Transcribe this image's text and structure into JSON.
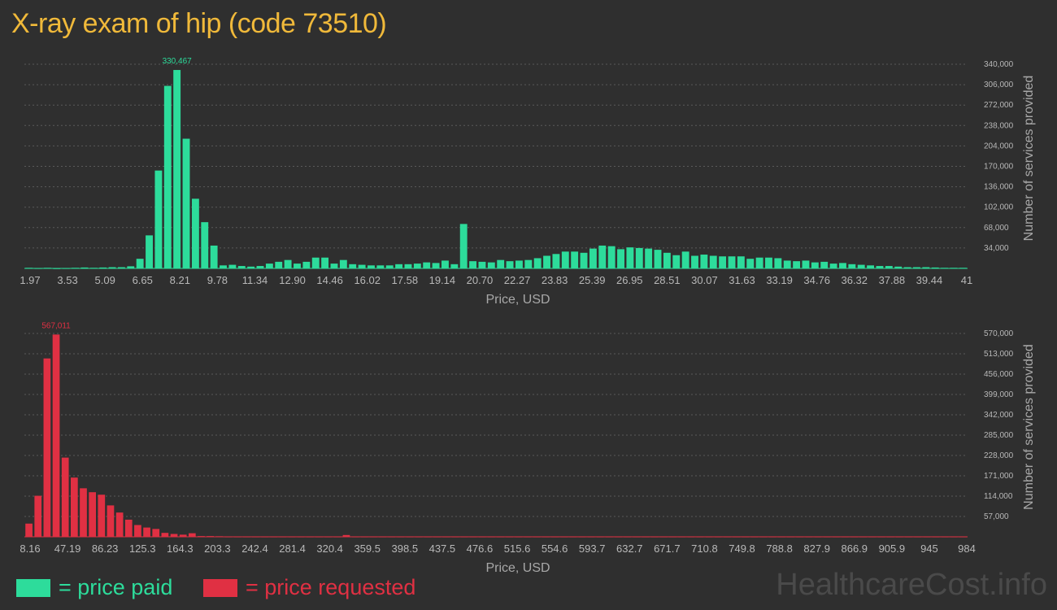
{
  "title": "X-ray exam of hip (code 73510)",
  "legend": {
    "paid_label": "= price paid",
    "requested_label": "= price requested",
    "paid_color": "#2ddc9b",
    "requested_color": "#e03043"
  },
  "watermark": "HealthcareCost.info",
  "chart_data": [
    {
      "type": "bar",
      "name": "price paid",
      "color": "#2ddc9b",
      "xlabel": "Price, USD",
      "ylabel": "Number of services provided",
      "ylim": [
        0,
        340000
      ],
      "yticks": [
        34000,
        68000,
        102000,
        136000,
        170000,
        204000,
        238000,
        272000,
        306000,
        340000
      ],
      "ytick_labels": [
        "34,000",
        "68,000",
        "102,000",
        "136,000",
        "170,000",
        "204,000",
        "238,000",
        "272,000",
        "306,000",
        "340,000"
      ],
      "xtick_labels": [
        "1.97",
        "3.53",
        "5.09",
        "6.65",
        "8.21",
        "9.78",
        "11.34",
        "12.90",
        "14.46",
        "16.02",
        "17.58",
        "19.14",
        "20.70",
        "22.27",
        "23.83",
        "25.39",
        "26.95",
        "28.51",
        "30.07",
        "31.63",
        "33.19",
        "34.76",
        "36.32",
        "37.88",
        "39.44",
        "41"
      ],
      "peak_label": "330,467",
      "peak_index": 16,
      "values": [
        1000,
        500,
        1000,
        300,
        500,
        1000,
        1500,
        1000,
        1500,
        2000,
        2000,
        3500,
        16000,
        55000,
        163000,
        304000,
        330467,
        216000,
        116000,
        77000,
        38000,
        5000,
        6000,
        4000,
        3000,
        4000,
        8000,
        11000,
        14000,
        8000,
        11000,
        18000,
        18000,
        8000,
        14000,
        7000,
        6000,
        5000,
        5000,
        5000,
        7000,
        7000,
        8000,
        10000,
        9000,
        13000,
        7000,
        74000,
        12000,
        11000,
        10000,
        14000,
        12000,
        13000,
        14000,
        17000,
        21000,
        24000,
        28000,
        28000,
        26000,
        33000,
        38000,
        37000,
        32000,
        35000,
        34000,
        33000,
        31000,
        26000,
        22000,
        28000,
        21000,
        23000,
        21000,
        20000,
        20000,
        20000,
        16000,
        18000,
        18000,
        17000,
        13000,
        12000,
        13000,
        10000,
        11000,
        8000,
        9000,
        7000,
        6000,
        5000,
        4000,
        4000,
        3000,
        2000,
        2000,
        2000,
        1500,
        1000,
        1000,
        1000
      ]
    },
    {
      "type": "bar",
      "name": "price requested",
      "color": "#e03043",
      "xlabel": "Price, USD",
      "ylabel": "Number of services provided",
      "ylim": [
        0,
        570000
      ],
      "yticks": [
        57000,
        114000,
        171000,
        228000,
        285000,
        342000,
        399000,
        456000,
        513000,
        570000
      ],
      "ytick_labels": [
        "57,000",
        "114,000",
        "171,000",
        "228,000",
        "285,000",
        "342,000",
        "399,000",
        "456,000",
        "513,000",
        "570,000"
      ],
      "xtick_labels": [
        "8.16",
        "47.19",
        "86.23",
        "125.3",
        "164.3",
        "203.3",
        "242.4",
        "281.4",
        "320.4",
        "359.5",
        "398.5",
        "437.5",
        "476.6",
        "515.6",
        "554.6",
        "593.7",
        "632.7",
        "671.7",
        "710.8",
        "749.8",
        "788.8",
        "827.9",
        "866.9",
        "905.9",
        "945",
        "984"
      ],
      "peak_label": "567,011",
      "peak_index": 3,
      "values": [
        37000,
        115000,
        500000,
        567011,
        222000,
        166000,
        136000,
        125000,
        118000,
        88000,
        68000,
        48000,
        33000,
        26000,
        22000,
        11000,
        8000,
        6000,
        10000,
        2000,
        2000,
        1500,
        1000,
        1000,
        1000,
        1000,
        1000,
        1000,
        1000,
        1000,
        1000,
        1000,
        1000,
        1000,
        1000,
        5000,
        1000,
        1000,
        1000,
        1000,
        1000,
        1000,
        1000,
        1000,
        1000,
        1000,
        1000,
        1000,
        1000,
        1000,
        1000,
        1000,
        1000,
        1000,
        1000,
        1000,
        1000,
        1000,
        1000,
        1000,
        1000,
        1000,
        1000,
        1000,
        1000,
        1000,
        1000,
        1000,
        1000,
        1000,
        1000,
        1000,
        1000,
        1000,
        1000,
        1000,
        1000,
        1000,
        1000,
        1000,
        1000,
        1000,
        1000,
        1000,
        1000,
        1000,
        1000,
        1000,
        1000,
        1000,
        1000,
        1000,
        1000,
        1000,
        1000,
        1000,
        1000,
        1000,
        1000,
        1000,
        1000,
        1000,
        1000,
        1000
      ]
    }
  ]
}
